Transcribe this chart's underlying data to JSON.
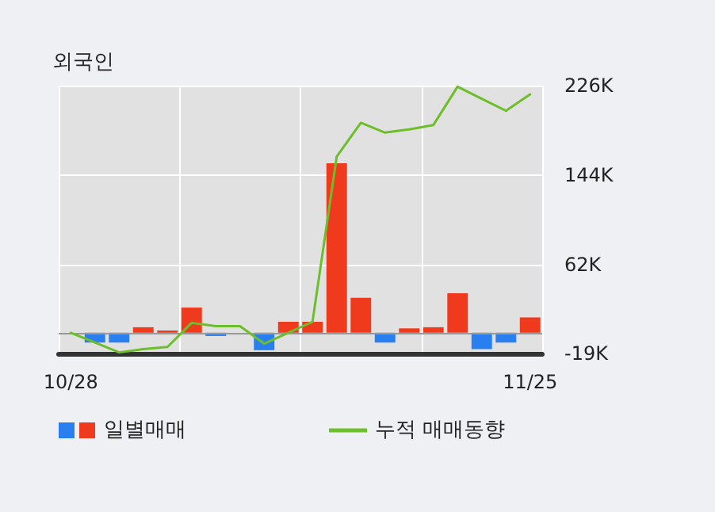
{
  "chart_data": {
    "type": "bar",
    "title": "외국인",
    "categories": [
      "10/28",
      null,
      null,
      null,
      null,
      null,
      null,
      null,
      null,
      null,
      null,
      null,
      null,
      null,
      null,
      null,
      null,
      null,
      null,
      "11/25"
    ],
    "series": [
      {
        "name": "일별매매",
        "color": "#f03a1e",
        "values": [
          0,
          -9000,
          -9000,
          5000,
          2000,
          23000,
          -3000,
          0,
          -16000,
          10000,
          10000,
          155000,
          32000,
          -9000,
          4000,
          5000,
          36000,
          -15000,
          -9000,
          14000
        ],
        "colors": [
          "#f03a1e",
          "#2a7ff0",
          "#2a7ff0",
          "#f03a1e",
          "#f03a1e",
          "#f03a1e",
          "#2a7ff0",
          "#f03a1e",
          "#2a7ff0",
          "#f03a1e",
          "#f03a1e",
          "#f03a1e",
          "#f03a1e",
          "#2a7ff0",
          "#f03a1e",
          "#f03a1e",
          "#f03a1e",
          "#2a7ff0",
          "#2a7ff0",
          "#f03a1e"
        ]
      },
      {
        "name": "누적 매매동향",
        "type": "line",
        "color": "#6cbf2a",
        "values": [
          0,
          -9000,
          -18000,
          -15000,
          -13000,
          9000,
          6000,
          6000,
          -10000,
          0,
          10000,
          161000,
          192000,
          183000,
          186000,
          190000,
          225000,
          214000,
          203000,
          218000
        ]
      }
    ],
    "ylim": [
      -19000,
      226000
    ],
    "yticks": [
      {
        "value": -19000,
        "label": "-19K"
      },
      {
        "value": 62000,
        "label": "62K"
      },
      {
        "value": 144000,
        "label": "144K"
      },
      {
        "value": 226000,
        "label": "226K"
      }
    ],
    "ref_lines": [
      {
        "axis": "y",
        "value": 0,
        "color": "#999999"
      }
    ],
    "grid": true,
    "legend": "bottom",
    "marker": "none",
    "line_style": "solid"
  }
}
